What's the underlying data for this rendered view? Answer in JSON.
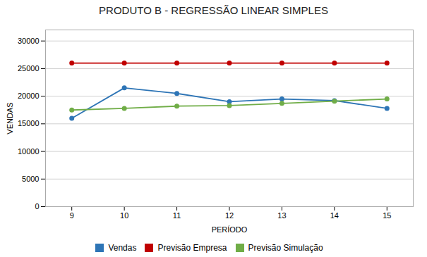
{
  "chart_data": {
    "type": "line",
    "title": "PRODUTO B - REGRESSÃO LINEAR SIMPLES",
    "xlabel": "PERÍODO",
    "ylabel": "VENDAS",
    "x": [
      9,
      10,
      11,
      12,
      13,
      14,
      15
    ],
    "series": [
      {
        "name": "Vendas",
        "color": "#2e75b6",
        "values": [
          16000,
          21500,
          20500,
          19000,
          19500,
          19200,
          17800
        ]
      },
      {
        "name": "Previsão Empresa",
        "color": "#c00000",
        "values": [
          26000,
          26000,
          26000,
          26000,
          26000,
          26000,
          26000
        ]
      },
      {
        "name": "Previsão Simulação",
        "color": "#70ad47",
        "values": [
          17500,
          17800,
          18200,
          18300,
          18700,
          19100,
          19500
        ]
      }
    ],
    "xlim": [
      8.5,
      15.5
    ],
    "xticks": [
      9,
      10,
      11,
      12,
      13,
      14,
      15
    ],
    "ylim": [
      0,
      32000
    ],
    "yticks": [
      0,
      5000,
      10000,
      15000,
      20000,
      25000,
      30000
    ],
    "grid": true,
    "legend": "bottom",
    "marker": "circle"
  }
}
